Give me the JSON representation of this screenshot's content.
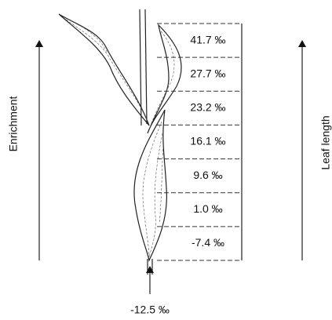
{
  "axis_labels": {
    "left": "Enrichment",
    "right": "Leaf length"
  },
  "segments": [
    "41.7 ‰",
    "27.7 ‰",
    "23.2 ‰",
    "16.1 ‰",
    "9.6 ‰",
    "1.0 ‰",
    "-7.4 ‰"
  ],
  "base": "-12.5 ‰"
}
